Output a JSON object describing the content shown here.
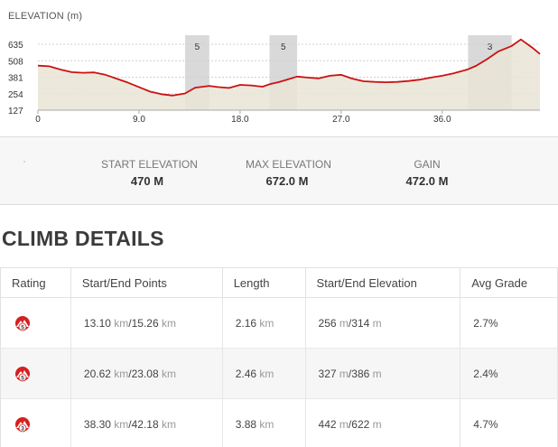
{
  "chart_data": {
    "type": "area",
    "title": "ELEVATION (m)",
    "xlabel": "",
    "ylabel": "",
    "xlim": [
      0,
      44.7
    ],
    "ylim": [
      127,
      635
    ],
    "y_ticks": [
      127,
      254,
      381,
      508,
      635
    ],
    "x_ticks": [
      0,
      9.0,
      18.0,
      27.0,
      36.0
    ],
    "x_tick_labels": [
      "0",
      "9.0",
      "18.0",
      "27.0",
      "36.0"
    ],
    "y_tick_labels": [
      "127",
      "254",
      "381",
      "508",
      "635"
    ],
    "grid": true,
    "line_color": "#cc1111",
    "fill_color": "#e9e5d6",
    "climb_band_color": "#d9d9d9",
    "climb_bands": [
      {
        "start": 13.1,
        "end": 15.26,
        "label": "5"
      },
      {
        "start": 20.62,
        "end": 23.08,
        "label": "5"
      },
      {
        "start": 38.3,
        "end": 42.18,
        "label": "3"
      }
    ],
    "series": [
      {
        "x": [
          0,
          1,
          2,
          3,
          4,
          5,
          6,
          7,
          8,
          9,
          10,
          11,
          12,
          13.1,
          14,
          15.26,
          16,
          17,
          18,
          19,
          20,
          20.62,
          21.5,
          22.3,
          23.08,
          24,
          25,
          26,
          27,
          28,
          29,
          30,
          31,
          32,
          33,
          34,
          35,
          36,
          37,
          38.3,
          39,
          40,
          41,
          42.18,
          43,
          44,
          44.7
        ],
        "y": [
          470,
          465,
          440,
          420,
          415,
          418,
          400,
          370,
          340,
          305,
          270,
          250,
          240,
          256,
          300,
          314,
          305,
          298,
          322,
          318,
          308,
          327,
          345,
          365,
          386,
          378,
          372,
          392,
          400,
          370,
          350,
          345,
          342,
          345,
          352,
          362,
          378,
          392,
          410,
          442,
          468,
          520,
          580,
          622,
          672,
          610,
          560
        ]
      }
    ]
  },
  "stats": {
    "start_label": "START ELEVATION",
    "start_value": "470 M",
    "max_label": "MAX ELEVATION",
    "max_value": "672.0 M",
    "gain_label": "GAIN",
    "gain_value": "472.0 M"
  },
  "climb_details": {
    "title": "CLIMB DETAILS",
    "columns": [
      "Rating",
      "Start/End Points",
      "Length",
      "Start/End Elevation",
      "Avg Grade"
    ],
    "unit_km": "km",
    "unit_m": "m",
    "rows": [
      {
        "rating": "5",
        "start_point": "13.10",
        "end_point": "15.26",
        "length": "2.16",
        "start_elev": "256",
        "end_elev": "314",
        "avg_grade": "2.7%"
      },
      {
        "rating": "5",
        "start_point": "20.62",
        "end_point": "23.08",
        "length": "2.46",
        "start_elev": "327",
        "end_elev": "386",
        "avg_grade": "2.4%"
      },
      {
        "rating": "3",
        "start_point": "38.30",
        "end_point": "42.18",
        "length": "3.88",
        "start_elev": "442",
        "end_elev": "622",
        "avg_grade": "4.7%"
      }
    ]
  },
  "icons": {
    "climb_category": "climb-category-icon"
  },
  "colors": {
    "accent": "#cc1111"
  }
}
